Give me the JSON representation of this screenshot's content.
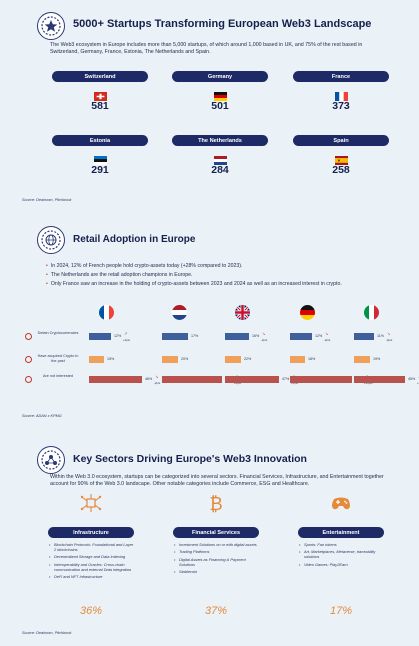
{
  "section1": {
    "title": "5000+ Startups Transforming European Web3 Landscape",
    "intro": "The Web3 ecosystem in Europe includes more than 5,000 startups, of which around 1,000 based in UK, and 75% of the rest based in Switzerland, Germany, France, Estonia, The Netherlands and Spain.",
    "countries": [
      {
        "name": "Switzerland",
        "value": "581",
        "flag": "switzerland-flag"
      },
      {
        "name": "Germany",
        "value": "501",
        "flag": "germany-flag"
      },
      {
        "name": "France",
        "value": "373",
        "flag": "france-flag"
      },
      {
        "name": "Estonia",
        "value": "291",
        "flag": "estonia-flag"
      },
      {
        "name": "The Netherlands",
        "value": "284",
        "flag": "netherlands-flag"
      },
      {
        "name": "Spain",
        "value": "258",
        "flag": "spain-flag"
      }
    ],
    "source": "Source: Dealroom, Pitchbook"
  },
  "section2": {
    "title": "Retail Adoption in Europe",
    "bullets": [
      "In 2024, 12% of French people hold crypto-assets today (+28% compared to 2023).",
      "The Netherlands are the retail adoption champions in Europe.",
      "Only France saw an increase in the holding of crypto-assets between 2023 and 2024 as well as an increased interest in crypto."
    ],
    "row_labels": [
      "Detain Cryptocurrencies",
      "Have acquired Crypto in the past",
      "Are not interested"
    ],
    "countries": [
      {
        "flag": "france-flag",
        "detain": {
          "pct": "12%",
          "chg": "+2pts"
        },
        "acquired": {
          "pct": "15%"
        },
        "notint": {
          "pct": "46%",
          "chg": "-2pts"
        }
      },
      {
        "flag": "netherlands-flag",
        "detain": {
          "pct": "17%",
          "chg": ""
        },
        "acquired": {
          "pct": "20%"
        },
        "notint": {
          "pct": "54%",
          "chg": "+4pts"
        }
      },
      {
        "flag": "uk-flag",
        "detain": {
          "pct": "16%",
          "chg": "-2pts"
        },
        "acquired": {
          "pct": "22%"
        },
        "notint": {
          "pct": "47%",
          "chg": "+5pts"
        }
      },
      {
        "flag": "germany-flag",
        "detain": {
          "pct": "12%",
          "chg": "-2pts"
        },
        "acquired": {
          "pct": "18%"
        },
        "notint": {
          "pct": "56%",
          "chg": "+10pts"
        }
      },
      {
        "flag": "italy-flag",
        "detain": {
          "pct": "11%",
          "chg": "-3pts"
        },
        "acquired": {
          "pct": "19%"
        },
        "notint": {
          "pct": "45%",
          "chg": "+10pts"
        }
      }
    ],
    "source": "Source: ADAN x KPMG"
  },
  "section3": {
    "title": "Key Sectors Driving Europe's Web3 Innovation",
    "intro": "Within the Web 3.0 ecosystem, startups can be categorized into several sectors. Financial Services, Infrastructure, and Entertainment together account for 90% of the Web 3.0 landscape. Other notable categories include Commerce, ESG and Healthcare.",
    "sectors": [
      {
        "name": "Infrastructure",
        "icon": "chip-icon",
        "pct": "36%",
        "items": [
          "Blockchain Protocols: Foundational and Layer 2 blockchains",
          "Decentralized Storage and Data Indexing",
          "Interoperability and Oracles: Cross-chain communication and external Data integration",
          "DeFi and NFT Infrastructure"
        ]
      },
      {
        "name": "Financial Services",
        "icon": "bitcoin-icon",
        "pct": "37%",
        "items": [
          "Investment Solutions on or with digital assets",
          "Trading Platforms",
          "Digital Assets as Financing & Payment Solutions",
          "Stablecoin"
        ]
      },
      {
        "name": "Entertainment",
        "icon": "gamepad-icon",
        "pct": "17%",
        "items": [
          "Sports: Fan tokens",
          "Art, Marketplaces, Metaverse, traceability solutions",
          "Video Games: Play2Earn"
        ]
      }
    ],
    "source": "Source: Dealroom, Pitchbook"
  },
  "colors": {
    "navy": "#1e2a66",
    "blue_bar": "#3e5f9c",
    "orange_bar": "#f0a05a",
    "red_bar": "#b9524c",
    "accent": "#e58a3b"
  }
}
